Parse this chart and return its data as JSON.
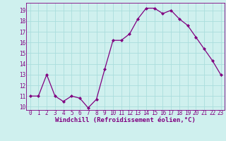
{
  "x": [
    0,
    1,
    2,
    3,
    4,
    5,
    6,
    7,
    8,
    9,
    10,
    11,
    12,
    13,
    14,
    15,
    16,
    17,
    18,
    19,
    20,
    21,
    22,
    23
  ],
  "y": [
    11,
    11,
    13,
    11,
    10.5,
    11,
    10.8,
    9.9,
    10.7,
    13.5,
    16.2,
    16.2,
    16.8,
    18.2,
    19.2,
    19.2,
    18.7,
    19.0,
    18.2,
    17.6,
    16.5,
    15.4,
    14.3,
    13.0
  ],
  "line_color": "#800080",
  "marker": "D",
  "markersize": 2.0,
  "linewidth": 0.9,
  "bg_color": "#cff0ee",
  "grid_color": "#aadddd",
  "xlabel": "Windchill (Refroidissement éolien,°C)",
  "xlabel_color": "#800080",
  "tick_color": "#800080",
  "ylim": [
    9.7,
    19.7
  ],
  "yticks": [
    10,
    11,
    12,
    13,
    14,
    15,
    16,
    17,
    18,
    19
  ],
  "xticks": [
    0,
    1,
    2,
    3,
    4,
    5,
    6,
    7,
    8,
    9,
    10,
    11,
    12,
    13,
    14,
    15,
    16,
    17,
    18,
    19,
    20,
    21,
    22,
    23
  ],
  "tick_fontsize": 5.5,
  "xlabel_fontsize": 6.5
}
